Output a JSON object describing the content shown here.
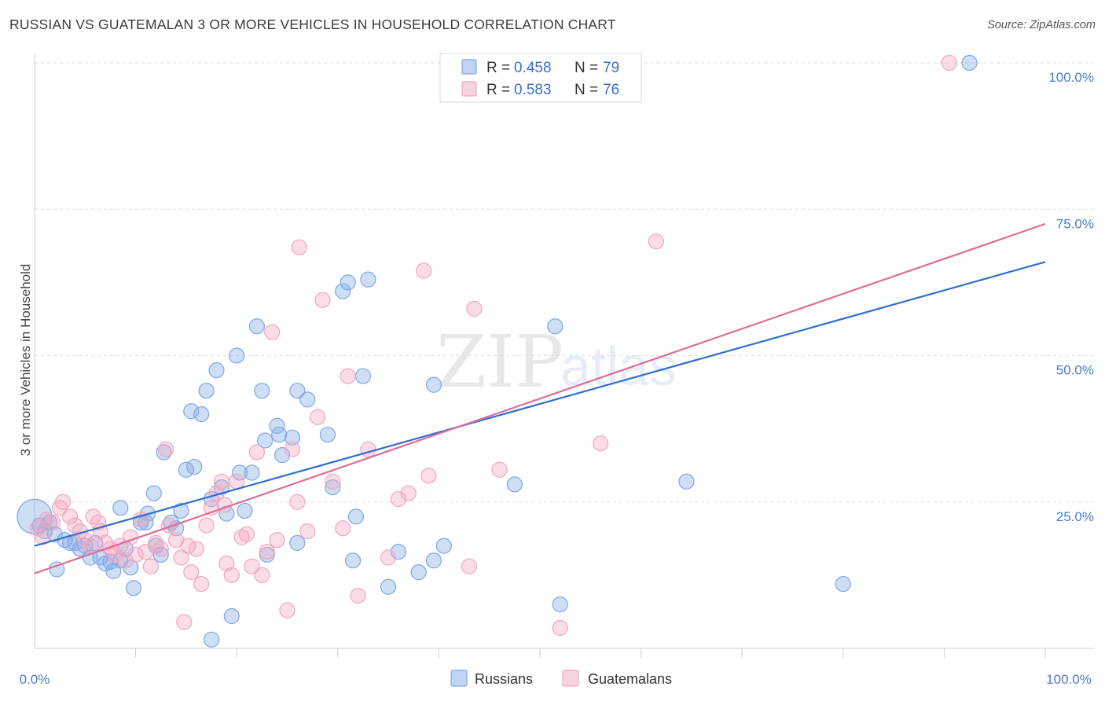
{
  "chart_data": {
    "type": "scatter",
    "title": "RUSSIAN VS GUATEMALAN 3 OR MORE VEHICLES IN HOUSEHOLD CORRELATION CHART",
    "source": "Source: ZipAtlas.com",
    "xlabel": "",
    "ylabel": "3 or more Vehicles in Household",
    "xlim": [
      0,
      100
    ],
    "ylim": [
      0,
      100
    ],
    "x_tick_labels": {
      "min": "0.0%",
      "max": "100.0%"
    },
    "y_ticks": [
      {
        "value": 25,
        "label": "25.0%"
      },
      {
        "value": 50,
        "label": "50.0%"
      },
      {
        "value": 75,
        "label": "75.0%"
      },
      {
        "value": 100,
        "label": "100.0%"
      }
    ],
    "grid": true,
    "legend_position": "top-center",
    "watermark": {
      "zip": "ZIP",
      "atlas": "atlas"
    },
    "series": [
      {
        "name": "Russians",
        "color": "#7ea9e6",
        "line_color": "#2f6fcf",
        "r_label": "R =",
        "r_value": "0.458",
        "n_label": "N =",
        "n_value": "79",
        "trend": {
          "x0": 0,
          "y0": 17.5,
          "x1": 100,
          "y1": 66
        },
        "points": [
          {
            "x": 0.0,
            "y": 22.5,
            "big": true
          },
          {
            "x": 0.5,
            "y": 21.0
          },
          {
            "x": 1.0,
            "y": 20.0
          },
          {
            "x": 1.5,
            "y": 21.5
          },
          {
            "x": 2.0,
            "y": 19.5
          },
          {
            "x": 2.2,
            "y": 13.5
          },
          {
            "x": 3.0,
            "y": 18.5
          },
          {
            "x": 3.5,
            "y": 18.0
          },
          {
            "x": 4.0,
            "y": 18.0
          },
          {
            "x": 4.5,
            "y": 17.0
          },
          {
            "x": 5.0,
            "y": 17.5
          },
          {
            "x": 5.5,
            "y": 15.5
          },
          {
            "x": 6.0,
            "y": 18.0
          },
          {
            "x": 6.5,
            "y": 15.5
          },
          {
            "x": 7.0,
            "y": 14.5
          },
          {
            "x": 7.5,
            "y": 14.8
          },
          {
            "x": 7.8,
            "y": 13.2
          },
          {
            "x": 8.5,
            "y": 24.0
          },
          {
            "x": 8.5,
            "y": 15.0
          },
          {
            "x": 9.0,
            "y": 17.0
          },
          {
            "x": 9.5,
            "y": 13.8
          },
          {
            "x": 9.8,
            "y": 10.3
          },
          {
            "x": 10.5,
            "y": 21.5
          },
          {
            "x": 11.0,
            "y": 21.5
          },
          {
            "x": 11.2,
            "y": 23.0
          },
          {
            "x": 11.8,
            "y": 26.5
          },
          {
            "x": 12.0,
            "y": 17.5
          },
          {
            "x": 12.5,
            "y": 16.0
          },
          {
            "x": 12.8,
            "y": 33.5
          },
          {
            "x": 13.5,
            "y": 21.5
          },
          {
            "x": 14.0,
            "y": 20.5
          },
          {
            "x": 14.5,
            "y": 23.5
          },
          {
            "x": 15.0,
            "y": 30.5
          },
          {
            "x": 15.5,
            "y": 40.5
          },
          {
            "x": 15.8,
            "y": 31.0
          },
          {
            "x": 16.5,
            "y": 40.0
          },
          {
            "x": 17.0,
            "y": 44.0
          },
          {
            "x": 17.5,
            "y": 1.5
          },
          {
            "x": 17.5,
            "y": 25.5
          },
          {
            "x": 18.0,
            "y": 47.5
          },
          {
            "x": 18.5,
            "y": 27.5
          },
          {
            "x": 19.0,
            "y": 23.0
          },
          {
            "x": 19.5,
            "y": 5.5
          },
          {
            "x": 20.0,
            "y": 50.0
          },
          {
            "x": 20.3,
            "y": 30.0
          },
          {
            "x": 20.8,
            "y": 23.5
          },
          {
            "x": 21.5,
            "y": 30.0
          },
          {
            "x": 22.0,
            "y": 55.0
          },
          {
            "x": 22.5,
            "y": 44.0
          },
          {
            "x": 22.8,
            "y": 35.5
          },
          {
            "x": 23.0,
            "y": 16.0
          },
          {
            "x": 24.0,
            "y": 38.0
          },
          {
            "x": 24.2,
            "y": 36.5
          },
          {
            "x": 24.5,
            "y": 33.0
          },
          {
            "x": 25.5,
            "y": 36.0
          },
          {
            "x": 26.0,
            "y": 18.0
          },
          {
            "x": 26.0,
            "y": 44.0
          },
          {
            "x": 27.0,
            "y": 42.5
          },
          {
            "x": 29.0,
            "y": 36.5
          },
          {
            "x": 29.5,
            "y": 27.5
          },
          {
            "x": 30.5,
            "y": 61.0
          },
          {
            "x": 31.0,
            "y": 62.5
          },
          {
            "x": 31.5,
            "y": 15.0
          },
          {
            "x": 31.8,
            "y": 22.5
          },
          {
            "x": 32.5,
            "y": 46.5
          },
          {
            "x": 33.0,
            "y": 63.0
          },
          {
            "x": 35.0,
            "y": 10.5
          },
          {
            "x": 36.0,
            "y": 16.5
          },
          {
            "x": 38.0,
            "y": 13.0
          },
          {
            "x": 39.5,
            "y": 15.0
          },
          {
            "x": 39.5,
            "y": 45.0
          },
          {
            "x": 40.5,
            "y": 17.5
          },
          {
            "x": 47.5,
            "y": 28.0
          },
          {
            "x": 51.5,
            "y": 55.0
          },
          {
            "x": 52.0,
            "y": 7.5
          },
          {
            "x": 64.5,
            "y": 28.5
          },
          {
            "x": 80.0,
            "y": 11.0
          },
          {
            "x": 92.5,
            "y": 100.0
          }
        ]
      },
      {
        "name": "Guatemalans",
        "color": "#f2a6bf",
        "line_color": "#e06c98",
        "r_label": "R =",
        "r_value": "0.583",
        "n_label": "N =",
        "n_value": "76",
        "trend": {
          "x0": 0,
          "y0": 12.8,
          "x1": 100,
          "y1": 72.5
        },
        "points": [
          {
            "x": 0.3,
            "y": 20.5
          },
          {
            "x": 0.8,
            "y": 19.0
          },
          {
            "x": 1.2,
            "y": 22.0
          },
          {
            "x": 1.8,
            "y": 21.5
          },
          {
            "x": 2.5,
            "y": 24.0
          },
          {
            "x": 2.8,
            "y": 25.0
          },
          {
            "x": 3.5,
            "y": 22.5
          },
          {
            "x": 4.0,
            "y": 21.0
          },
          {
            "x": 4.5,
            "y": 20.0
          },
          {
            "x": 5.0,
            "y": 18.5
          },
          {
            "x": 5.5,
            "y": 17.5
          },
          {
            "x": 5.8,
            "y": 22.5
          },
          {
            "x": 6.3,
            "y": 21.5
          },
          {
            "x": 6.5,
            "y": 20.0
          },
          {
            "x": 7.0,
            "y": 18.0
          },
          {
            "x": 7.5,
            "y": 17.0
          },
          {
            "x": 8.0,
            "y": 16.0
          },
          {
            "x": 8.5,
            "y": 17.5
          },
          {
            "x": 9.0,
            "y": 15.0
          },
          {
            "x": 9.5,
            "y": 19.0
          },
          {
            "x": 10.0,
            "y": 16.0
          },
          {
            "x": 10.5,
            "y": 22.0
          },
          {
            "x": 11.0,
            "y": 16.5
          },
          {
            "x": 11.5,
            "y": 14.0
          },
          {
            "x": 12.0,
            "y": 18.0
          },
          {
            "x": 12.5,
            "y": 17.0
          },
          {
            "x": 13.0,
            "y": 34.0
          },
          {
            "x": 13.3,
            "y": 21.0
          },
          {
            "x": 14.0,
            "y": 18.5
          },
          {
            "x": 14.5,
            "y": 15.5
          },
          {
            "x": 14.8,
            "y": 4.5
          },
          {
            "x": 15.2,
            "y": 17.5
          },
          {
            "x": 15.5,
            "y": 13.0
          },
          {
            "x": 16.0,
            "y": 17.0
          },
          {
            "x": 16.5,
            "y": 11.0
          },
          {
            "x": 17.0,
            "y": 21.0
          },
          {
            "x": 17.5,
            "y": 24.0
          },
          {
            "x": 18.0,
            "y": 26.5
          },
          {
            "x": 18.5,
            "y": 28.5
          },
          {
            "x": 18.8,
            "y": 24.5
          },
          {
            "x": 19.0,
            "y": 14.5
          },
          {
            "x": 19.5,
            "y": 12.5
          },
          {
            "x": 20.0,
            "y": 28.5
          },
          {
            "x": 20.5,
            "y": 19.0
          },
          {
            "x": 21.0,
            "y": 19.5
          },
          {
            "x": 21.5,
            "y": 14.0
          },
          {
            "x": 22.0,
            "y": 33.5
          },
          {
            "x": 22.5,
            "y": 12.5
          },
          {
            "x": 23.0,
            "y": 16.5
          },
          {
            "x": 23.5,
            "y": 54.0
          },
          {
            "x": 24.0,
            "y": 18.5
          },
          {
            "x": 25.0,
            "y": 6.5
          },
          {
            "x": 25.5,
            "y": 34.0
          },
          {
            "x": 26.0,
            "y": 25.0
          },
          {
            "x": 26.2,
            "y": 68.5
          },
          {
            "x": 27.0,
            "y": 20.0
          },
          {
            "x": 28.0,
            "y": 39.5
          },
          {
            "x": 28.5,
            "y": 59.5
          },
          {
            "x": 29.5,
            "y": 28.5
          },
          {
            "x": 30.5,
            "y": 20.5
          },
          {
            "x": 31.0,
            "y": 46.5
          },
          {
            "x": 32.0,
            "y": 9.0
          },
          {
            "x": 33.0,
            "y": 34.0
          },
          {
            "x": 35.0,
            "y": 15.5
          },
          {
            "x": 36.0,
            "y": 25.5
          },
          {
            "x": 37.0,
            "y": 26.5
          },
          {
            "x": 38.5,
            "y": 64.5
          },
          {
            "x": 39.0,
            "y": 29.5
          },
          {
            "x": 43.0,
            "y": 14.0
          },
          {
            "x": 43.5,
            "y": 58.0
          },
          {
            "x": 46.0,
            "y": 30.5
          },
          {
            "x": 52.0,
            "y": 3.5
          },
          {
            "x": 56.0,
            "y": 35.0
          },
          {
            "x": 61.5,
            "y": 69.5
          },
          {
            "x": 90.5,
            "y": 100.0
          }
        ]
      }
    ]
  }
}
